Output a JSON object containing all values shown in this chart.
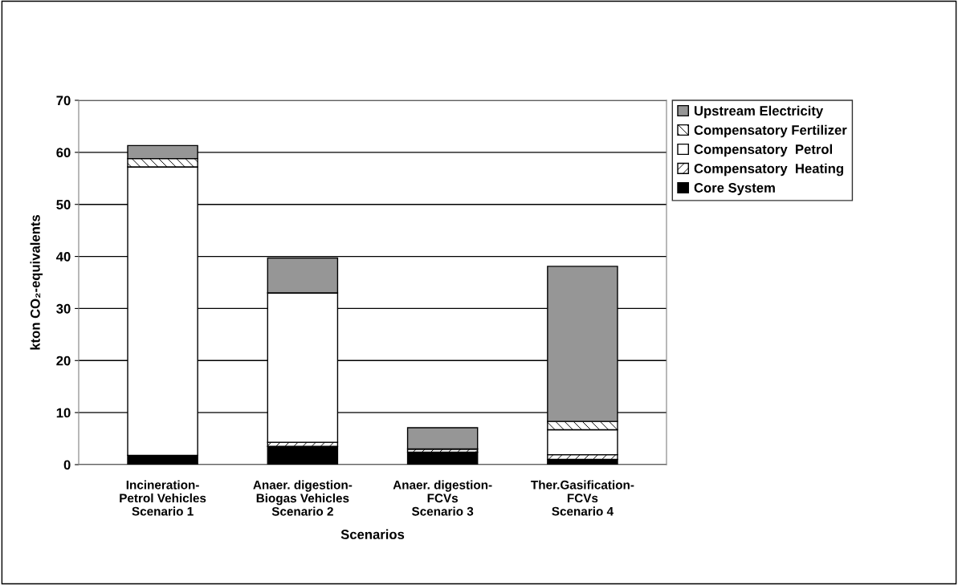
{
  "chart_data": {
    "type": "bar",
    "stacked": true,
    "xlabel": "Scenarios",
    "ylabel": "kton CO₂-equivalents",
    "categories": [
      "Incineration-\nPetrol Vehicles\nScenario 1",
      "Anaer. digestion-\nBiogas Vehicles\nScenario 2",
      "Anaer. digestion-\nFCVs\nScenario 3",
      "Ther.Gasification-\nFCVs\nScenario 4"
    ],
    "series": [
      {
        "name": "Core System",
        "color": "#000000",
        "values": [
          1.8,
          3.5,
          2.4,
          1.0
        ]
      },
      {
        "name": "Compensatory  Heating",
        "color": "#000000",
        "values": [
          0,
          0.8,
          0.6,
          0.9
        ]
      },
      {
        "name": "Compensatory  Petrol",
        "color": "#ffffff",
        "values": [
          55.4,
          28.7,
          0,
          4.8
        ]
      },
      {
        "name": "Compensatory Fertilizer",
        "color": "#000000",
        "values": [
          1.6,
          0,
          0,
          1.6
        ]
      },
      {
        "name": "Upstream Electricity",
        "color": "#969696",
        "values": [
          2.5,
          6.7,
          4.1,
          29.8
        ]
      }
    ],
    "ylim": [
      0,
      70
    ],
    "yticks": [
      0,
      10,
      20,
      30,
      40,
      50,
      60,
      70
    ],
    "grid": "y",
    "legend": "top right"
  }
}
